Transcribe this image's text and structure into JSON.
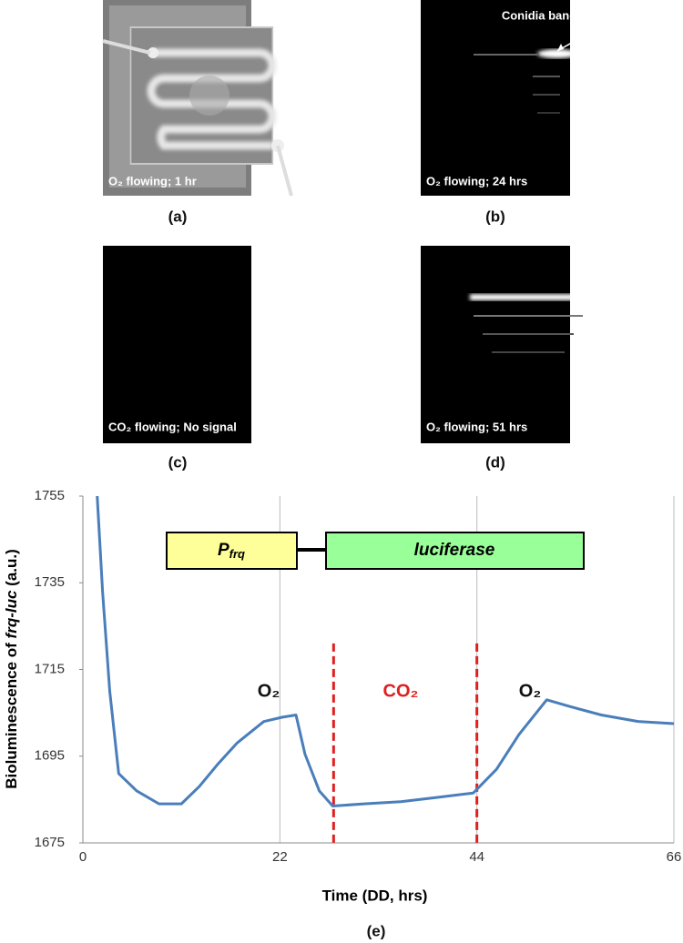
{
  "panels": [
    {
      "label": "(a)",
      "caption": "O₂ flowing; 1 hr"
    },
    {
      "label": "(b)",
      "caption": "O₂ flowing; 24 hrs"
    },
    {
      "label": "(c)",
      "caption": "CO₂ flowing; No signal"
    },
    {
      "label": "(d)",
      "caption": "O₂ flowing; 51 hrs"
    }
  ],
  "annotation": "Conidia band",
  "chart_data": {
    "type": "line",
    "label": "(e)",
    "ylabel_parts": [
      "Bioluminescence of ",
      "frq-luc",
      " (a.u.)"
    ],
    "xlabel": "Time (DD, hrs)",
    "construct": {
      "promoter": [
        "P",
        "frq"
      ],
      "gene": "luciferase"
    },
    "phase_boundaries": [
      28,
      44
    ],
    "phase_labels": [
      "O₂",
      "CO₂",
      "O₂"
    ],
    "xlim": [
      0,
      66
    ],
    "ylim": [
      1675,
      1755
    ],
    "xticks": [
      0,
      22,
      44,
      66
    ],
    "yticks": [
      1675,
      1695,
      1715,
      1735,
      1755
    ],
    "grid": true,
    "x": [
      1.6,
      2.2,
      3,
      4,
      6,
      8.5,
      11,
      13,
      15,
      17.2,
      20.2,
      22.3,
      23.8,
      24.8,
      26.4,
      27.9,
      31.4,
      35.5,
      39.6,
      43.6,
      46.2,
      48.7,
      51.8,
      54.3,
      57.9,
      62,
      66
    ],
    "series": [
      {
        "color": "#4a7ebb",
        "values": [
          1755,
          1733,
          1710,
          1691,
          1687,
          1684,
          1684,
          1688,
          1693,
          1698,
          1703,
          1704,
          1704.5,
          1695.5,
          1687,
          1683.5,
          1684,
          1684.5,
          1685.5,
          1686.5,
          1692,
          1700,
          1708,
          1706.5,
          1704.5,
          1703,
          1702.5
        ]
      }
    ]
  }
}
